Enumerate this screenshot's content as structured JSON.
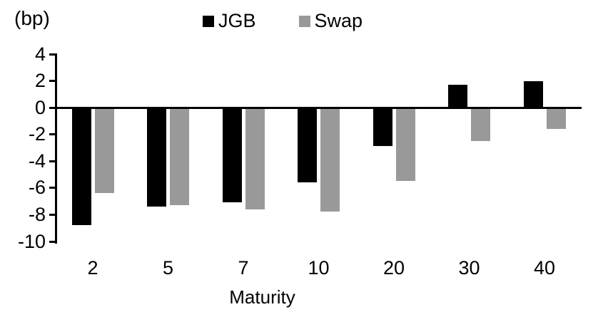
{
  "chart_data": {
    "type": "bar",
    "title": "",
    "y_unit_label": "(bp)",
    "xlabel": "Maturity",
    "ylabel": "",
    "categories": [
      "2",
      "5",
      "7",
      "10",
      "20",
      "30",
      "40"
    ],
    "series": [
      {
        "name": "JGB",
        "color": "#000000",
        "values": [
          -8.7,
          -7.3,
          -7.0,
          -5.5,
          -2.8,
          1.7,
          2.0
        ]
      },
      {
        "name": "Swap",
        "color": "#999999",
        "values": [
          -6.3,
          -7.2,
          -7.5,
          -7.7,
          -5.4,
          -2.4,
          -1.5
        ]
      }
    ],
    "y_ticks": [
      4,
      2,
      0,
      -2,
      -4,
      -6,
      -8,
      -10
    ],
    "ylim": [
      -10,
      4
    ],
    "grid": false,
    "legend_position": "top-center",
    "zero_baseline": true
  }
}
